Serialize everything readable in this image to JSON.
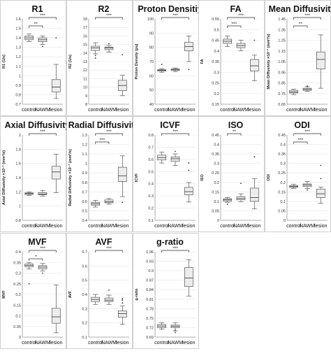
{
  "figure": {
    "group_labels": [
      "control",
      "NAWM",
      "lesion"
    ]
  },
  "chart_data": [
    {
      "type": "boxplot",
      "title": "R1",
      "ylabel": "R1 (1/s)",
      "ylim": [
        0.7,
        1.6
      ],
      "yticks": [
        0.7,
        0.8,
        0.9,
        1.0,
        1.1,
        1.2,
        1.3,
        1.4,
        1.5,
        1.6
      ],
      "ytick_labels": [
        "0.7",
        "0.8",
        "0.9",
        "1",
        "1.1",
        "1.2",
        "1.3",
        "1.4",
        "1.5",
        "1.6"
      ],
      "categories": [
        "control",
        "NAWM",
        "lesion"
      ],
      "boxes": [
        {
          "min": 1.36,
          "q1": 1.38,
          "median": 1.4,
          "q3": 1.42,
          "max": 1.44,
          "outliers": []
        },
        {
          "min": 1.33,
          "q1": 1.36,
          "median": 1.38,
          "q3": 1.4,
          "max": 1.42,
          "outliers": [
            1.31
          ]
        },
        {
          "min": 0.76,
          "q1": 0.83,
          "median": 0.88,
          "q3": 0.96,
          "max": 1.12,
          "outliers": [
            1.4
          ]
        }
      ],
      "brackets": [
        {
          "from": 0,
          "to": 1,
          "label": "**"
        },
        {
          "from": 0,
          "to": 2,
          "label": "***"
        }
      ]
    },
    {
      "type": "boxplot",
      "title": "R2",
      "ylabel": "R2 (1/s)",
      "ylim": [
        8,
        18
      ],
      "yticks": [
        8,
        9,
        10,
        11,
        12,
        13,
        14,
        15,
        16,
        17,
        18
      ],
      "ytick_labels": [
        "8",
        "9",
        "10",
        "11",
        "12",
        "13",
        "14",
        "15",
        "16",
        "17",
        "18"
      ],
      "categories": [
        "control",
        "NAWM",
        "lesion"
      ],
      "boxes": [
        {
          "min": 13.9,
          "q1": 14.3,
          "median": 14.6,
          "q3": 14.8,
          "max": 15.2,
          "outliers": [
            13.4,
            13.7
          ]
        },
        {
          "min": 14.1,
          "q1": 14.4,
          "median": 14.6,
          "q3": 14.7,
          "max": 14.9,
          "outliers": [
            15.1
          ]
        },
        {
          "min": 9.0,
          "q1": 9.6,
          "median": 10.2,
          "q3": 10.8,
          "max": 11.4,
          "outliers": [
            13.8
          ]
        }
      ],
      "brackets": [
        {
          "from": 0,
          "to": 2,
          "label": "***"
        }
      ]
    },
    {
      "type": "boxplot",
      "title": "Proton Densitiy",
      "ylabel": "Proton Density (pu)",
      "ylim": [
        40,
        100
      ],
      "yticks": [
        40,
        50,
        60,
        70,
        80,
        90,
        100
      ],
      "ytick_labels": [
        "40",
        "50",
        "60",
        "70",
        "80",
        "90",
        "100"
      ],
      "categories": [
        "control",
        "NAWM",
        "lesion"
      ],
      "boxes": [
        {
          "min": 62.5,
          "q1": 63.3,
          "median": 63.8,
          "q3": 64.3,
          "max": 65.0,
          "outliers": [
            68.0
          ]
        },
        {
          "min": 63.0,
          "q1": 63.8,
          "median": 64.2,
          "q3": 64.8,
          "max": 65.5,
          "outliers": []
        },
        {
          "min": 70.0,
          "q1": 77.5,
          "median": 80.5,
          "q3": 83.5,
          "max": 88.0,
          "outliers": [
            64.5
          ]
        }
      ],
      "brackets": [
        {
          "from": 0,
          "to": 2,
          "label": "***"
        }
      ]
    },
    {
      "type": "boxplot",
      "title": "FA",
      "ylabel": "FA",
      "ylim": [
        0.15,
        0.55
      ],
      "yticks": [
        0.15,
        0.2,
        0.25,
        0.3,
        0.35,
        0.4,
        0.45,
        0.5,
        0.55
      ],
      "ytick_labels": [
        "0.15",
        "0.2",
        "0.25",
        "0.3",
        "0.35",
        "0.4",
        "0.45",
        "0.5",
        "0.55"
      ],
      "categories": [
        "control",
        "NAWM",
        "lesion"
      ],
      "boxes": [
        {
          "min": 0.42,
          "q1": 0.435,
          "median": 0.445,
          "q3": 0.455,
          "max": 0.47,
          "outliers": []
        },
        {
          "min": 0.4,
          "q1": 0.415,
          "median": 0.425,
          "q3": 0.435,
          "max": 0.45,
          "outliers": []
        },
        {
          "min": 0.26,
          "q1": 0.305,
          "median": 0.33,
          "q3": 0.36,
          "max": 0.38,
          "outliers": [
            0.45
          ]
        }
      ],
      "brackets": [
        {
          "from": 0,
          "to": 1,
          "label": "***"
        },
        {
          "from": 0,
          "to": 2,
          "label": "***"
        }
      ]
    },
    {
      "type": "boxplot",
      "title": "Mean Diffusivity",
      "ylabel": "Mean Diffusivity ×10⁻³ (mm²/s)",
      "ylim": [
        0.65,
        1.45
      ],
      "yticks": [
        0.65,
        0.75,
        0.85,
        0.95,
        1.05,
        1.15,
        1.25,
        1.35,
        1.45
      ],
      "ytick_labels": [
        "0.65",
        "0.75",
        "0.85",
        "0.95",
        "1.05",
        "1.15",
        "1.25",
        "1.35",
        "1.45"
      ],
      "categories": [
        "control",
        "NAWM",
        "lesion"
      ],
      "boxes": [
        {
          "min": 0.74,
          "q1": 0.755,
          "median": 0.765,
          "q3": 0.78,
          "max": 0.79,
          "outliers": []
        },
        {
          "min": 0.77,
          "q1": 0.78,
          "median": 0.79,
          "q3": 0.8,
          "max": 0.815,
          "outliers": [
            0.82
          ]
        },
        {
          "min": 0.8,
          "q1": 0.98,
          "median": 1.07,
          "q3": 1.14,
          "max": 1.3,
          "outliers": []
        }
      ],
      "brackets": [
        {
          "from": 0,
          "to": 1,
          "label": "**"
        },
        {
          "from": 0,
          "to": 2,
          "label": "***"
        }
      ]
    },
    {
      "type": "boxplot",
      "title": "Axial Diffusivity",
      "ylabel": "Axial Diffusivity ×10⁻³ (mm²/s)",
      "ylim": [
        0.8,
        2.0
      ],
      "yticks": [
        0.8,
        1.0,
        1.2,
        1.4,
        1.6,
        1.8,
        2.0
      ],
      "ytick_labels": [
        "0.8",
        "1",
        "1.2",
        "1.4",
        "1.6",
        "1.8",
        "2"
      ],
      "categories": [
        "control",
        "NAWM",
        "lesion"
      ],
      "boxes": [
        {
          "min": 1.15,
          "q1": 1.165,
          "median": 1.175,
          "q3": 1.185,
          "max": 1.2,
          "outliers": []
        },
        {
          "min": 1.14,
          "q1": 1.16,
          "median": 1.17,
          "q3": 1.19,
          "max": 1.22,
          "outliers": []
        },
        {
          "min": 1.19,
          "q1": 1.38,
          "median": 1.48,
          "q3": 1.56,
          "max": 1.73,
          "outliers": []
        }
      ],
      "brackets": [
        {
          "from": 0,
          "to": 2,
          "label": "***"
        }
      ]
    },
    {
      "type": "boxplot",
      "title": "Radial Diffusivity",
      "ylabel": "Radial Diffusivity ×10⁻³ (mm²/s)",
      "ylim": [
        0.4,
        1.3
      ],
      "yticks": [
        0.4,
        0.5,
        0.6,
        0.7,
        0.8,
        0.9,
        1.0,
        1.1,
        1.2,
        1.3
      ],
      "ytick_labels": [
        "0.4",
        "0.5",
        "0.6",
        "0.7",
        "0.8",
        "0.9",
        "1",
        "1.1",
        "1.2",
        "1.3"
      ],
      "categories": [
        "control",
        "NAWM",
        "lesion"
      ],
      "boxes": [
        {
          "min": 0.54,
          "q1": 0.56,
          "median": 0.575,
          "q3": 0.59,
          "max": 0.61,
          "outliers": []
        },
        {
          "min": 0.57,
          "q1": 0.585,
          "median": 0.595,
          "q3": 0.615,
          "max": 0.63,
          "outliers": []
        },
        {
          "min": 0.65,
          "q1": 0.81,
          "median": 0.87,
          "q3": 0.96,
          "max": 1.08,
          "outliers": [
            0.59
          ]
        }
      ],
      "brackets": [
        {
          "from": 0,
          "to": 1,
          "label": "***"
        },
        {
          "from": 0,
          "to": 2,
          "label": "***"
        }
      ]
    },
    {
      "type": "boxplot",
      "title": "ICVF",
      "ylabel": "ICVF",
      "ylim": [
        0.1,
        0.8
      ],
      "yticks": [
        0.1,
        0.2,
        0.3,
        0.4,
        0.5,
        0.6,
        0.7,
        0.8
      ],
      "ytick_labels": [
        "0.1",
        "0.2",
        "0.3",
        "0.4",
        "0.5",
        "0.6",
        "0.7",
        "0.8"
      ],
      "categories": [
        "control",
        "NAWM",
        "lesion"
      ],
      "boxes": [
        {
          "min": 0.57,
          "q1": 0.595,
          "median": 0.615,
          "q3": 0.635,
          "max": 0.66,
          "outliers": []
        },
        {
          "min": 0.55,
          "q1": 0.585,
          "median": 0.605,
          "q3": 0.62,
          "max": 0.645,
          "outliers": [
            0.665
          ]
        },
        {
          "min": 0.25,
          "q1": 0.31,
          "median": 0.335,
          "q3": 0.37,
          "max": 0.41,
          "outliers": [
            0.51,
            0.57
          ]
        }
      ],
      "brackets": [
        {
          "from": 0,
          "to": 2,
          "label": "***"
        }
      ]
    },
    {
      "type": "boxplot",
      "title": "ISO",
      "ylabel": "ISO",
      "ylim": [
        0,
        0.45
      ],
      "yticks": [
        0,
        0.05,
        0.1,
        0.15,
        0.2,
        0.25,
        0.3,
        0.35,
        0.4,
        0.45
      ],
      "ytick_labels": [
        "0",
        "0.05",
        "0.1",
        "0.15",
        "0.2",
        "0.25",
        "0.3",
        "0.35",
        "0.4",
        "0.45"
      ],
      "categories": [
        "control",
        "NAWM",
        "lesion"
      ],
      "boxes": [
        {
          "min": 0.095,
          "q1": 0.102,
          "median": 0.108,
          "q3": 0.114,
          "max": 0.12,
          "outliers": [
            0.085
          ]
        },
        {
          "min": 0.098,
          "q1": 0.108,
          "median": 0.115,
          "q3": 0.125,
          "max": 0.14,
          "outliers": [
            0.195
          ]
        },
        {
          "min": 0.06,
          "q1": 0.1,
          "median": 0.12,
          "q3": 0.17,
          "max": 0.22,
          "outliers": [
            0.335
          ]
        }
      ],
      "brackets": [
        {
          "from": 0,
          "to": 1,
          "label": "**"
        }
      ]
    },
    {
      "type": "boxplot",
      "title": "ODI",
      "ylabel": "ODI",
      "ylim": [
        0,
        0.45
      ],
      "yticks": [
        0,
        0.05,
        0.1,
        0.15,
        0.2,
        0.25,
        0.3,
        0.35,
        0.4,
        0.45
      ],
      "ytick_labels": [
        "0",
        "0.05",
        "0.1",
        "0.15",
        "0.2",
        "0.25",
        "0.3",
        "0.35",
        "0.4",
        "0.45"
      ],
      "categories": [
        "control",
        "NAWM",
        "lesion"
      ],
      "boxes": [
        {
          "min": 0.168,
          "q1": 0.174,
          "median": 0.178,
          "q3": 0.183,
          "max": 0.19,
          "outliers": []
        },
        {
          "min": 0.168,
          "q1": 0.178,
          "median": 0.186,
          "q3": 0.192,
          "max": 0.205,
          "outliers": [
            0.16
          ]
        },
        {
          "min": 0.09,
          "q1": 0.12,
          "median": 0.14,
          "q3": 0.165,
          "max": 0.175,
          "outliers": [
            0.22,
            0.29
          ]
        }
      ],
      "brackets": [
        {
          "from": 0,
          "to": 1,
          "label": "***"
        },
        {
          "from": 0,
          "to": 2,
          "label": "***"
        }
      ]
    },
    {
      "type": "boxplot",
      "title": "MVF",
      "ylabel": "MVF",
      "ylim": [
        0,
        0.4
      ],
      "yticks": [
        0,
        0.05,
        0.1,
        0.15,
        0.2,
        0.25,
        0.3,
        0.35,
        0.4
      ],
      "ytick_labels": [
        "0",
        "0.05",
        "0.1",
        "0.15",
        "0.2",
        "0.25",
        "0.3",
        "0.35",
        "0.4"
      ],
      "categories": [
        "control",
        "NAWM",
        "lesion"
      ],
      "boxes": [
        {
          "min": 0.32,
          "q1": 0.33,
          "median": 0.336,
          "q3": 0.343,
          "max": 0.35,
          "outliers": [
            0.25
          ]
        },
        {
          "min": 0.31,
          "q1": 0.32,
          "median": 0.328,
          "q3": 0.335,
          "max": 0.345,
          "outliers": [
            0.3
          ]
        },
        {
          "min": 0.02,
          "q1": 0.065,
          "median": 0.095,
          "q3": 0.135,
          "max": 0.245,
          "outliers": []
        }
      ],
      "brackets": [
        {
          "from": 0,
          "to": 1,
          "label": "*"
        },
        {
          "from": 0,
          "to": 2,
          "label": "***"
        }
      ]
    },
    {
      "type": "boxplot",
      "title": "AVF",
      "ylabel": "AVF",
      "ylim": [
        0.1,
        0.7
      ],
      "yticks": [
        0.1,
        0.2,
        0.3,
        0.4,
        0.5,
        0.6,
        0.7
      ],
      "ytick_labels": [
        "0.1",
        "0.2",
        "0.3",
        "0.4",
        "0.5",
        "0.6",
        "0.7"
      ],
      "categories": [
        "control",
        "NAWM",
        "lesion"
      ],
      "boxes": [
        {
          "min": 0.33,
          "q1": 0.35,
          "median": 0.365,
          "q3": 0.38,
          "max": 0.4,
          "outliers": []
        },
        {
          "min": 0.33,
          "q1": 0.35,
          "median": 0.36,
          "q3": 0.375,
          "max": 0.395,
          "outliers": [
            0.43
          ]
        },
        {
          "min": 0.19,
          "q1": 0.24,
          "median": 0.265,
          "q3": 0.285,
          "max": 0.32,
          "outliers": [
            0.34,
            0.36,
            0.37
          ]
        }
      ],
      "brackets": [
        {
          "from": 0,
          "to": 2,
          "label": "***"
        }
      ]
    },
    {
      "type": "boxplot",
      "title": "g-ratio",
      "ylabel": "g-ratio",
      "ylim": [
        0.69,
        0.96
      ],
      "yticks": [
        0.69,
        0.72,
        0.75,
        0.78,
        0.81,
        0.84,
        0.87,
        0.9,
        0.93,
        0.96
      ],
      "ytick_labels": [
        "0.69",
        "0.72",
        "0.75",
        "0.78",
        "0.81",
        "0.84",
        "0.87",
        "0.9",
        "0.93",
        "0.96"
      ],
      "categories": [
        "control",
        "NAWM",
        "lesion"
      ],
      "boxes": [
        {
          "min": 0.715,
          "q1": 0.72,
          "median": 0.725,
          "q3": 0.73,
          "max": 0.735,
          "outliers": []
        },
        {
          "min": 0.71,
          "q1": 0.72,
          "median": 0.724,
          "q3": 0.728,
          "max": 0.735,
          "outliers": [
            0.705,
            0.712
          ]
        },
        {
          "min": 0.82,
          "q1": 0.85,
          "median": 0.877,
          "q3": 0.91,
          "max": 0.935,
          "outliers": []
        }
      ],
      "brackets": [
        {
          "from": 0,
          "to": 2,
          "label": "***"
        }
      ]
    }
  ]
}
